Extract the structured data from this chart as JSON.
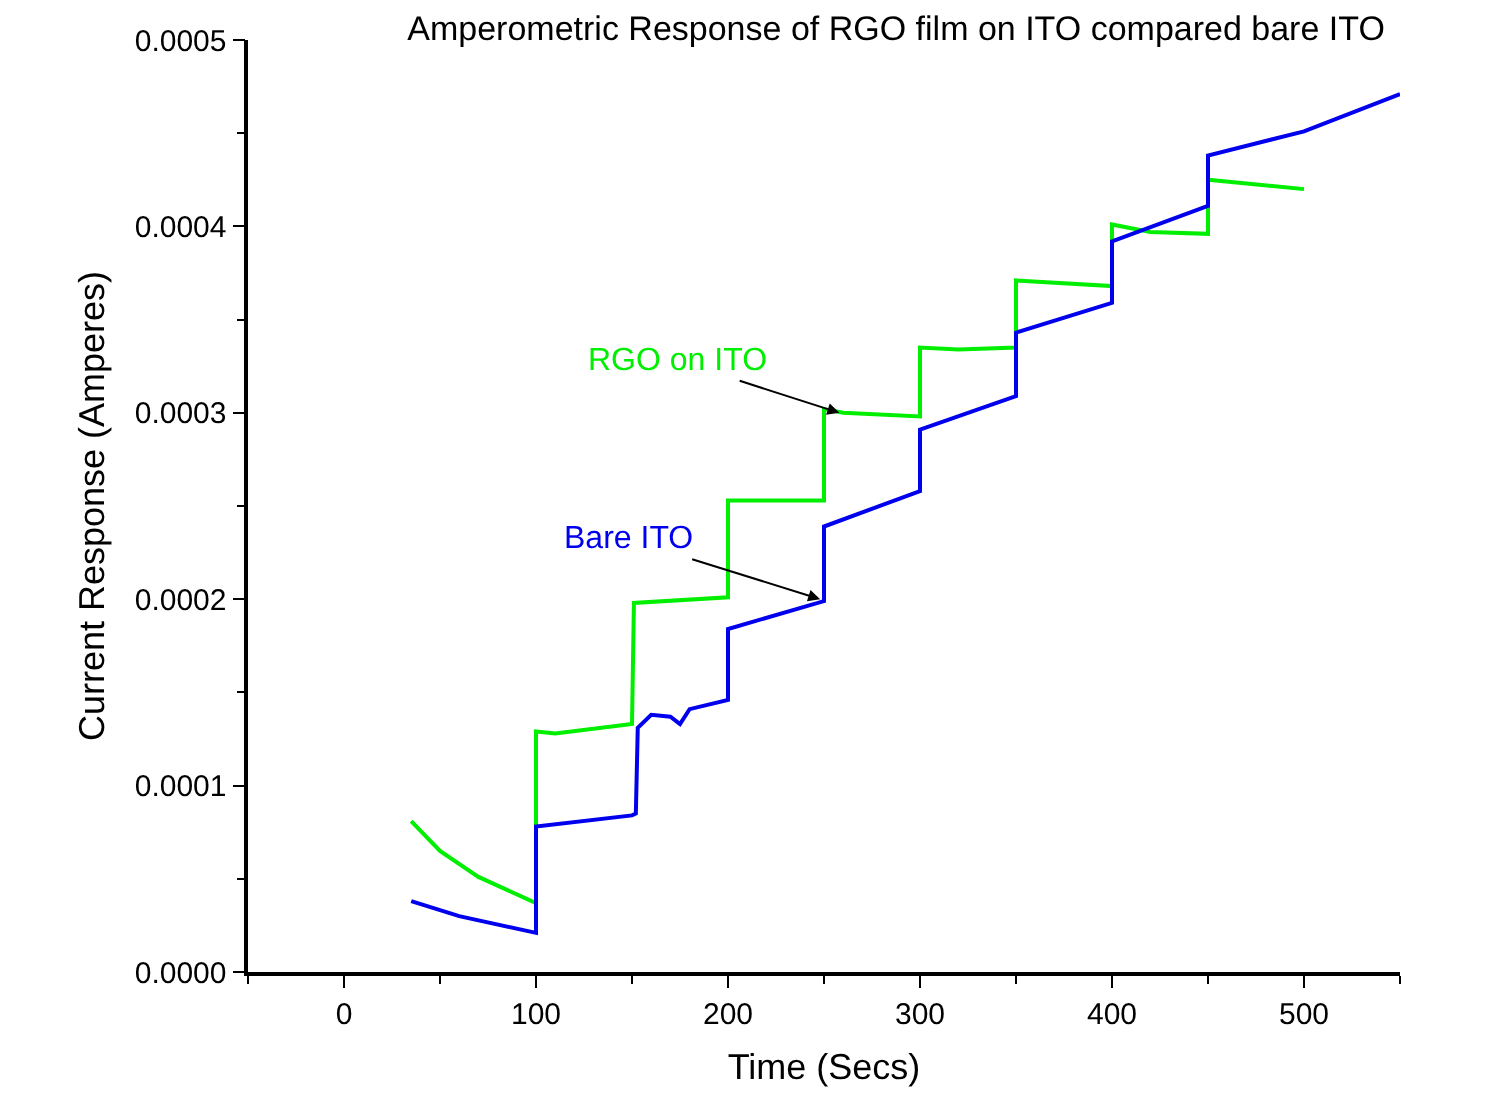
{
  "chart_data": {
    "type": "line",
    "title": "Amperometric Response of RGO film on ITO compared bare ITO",
    "xlabel": "Time (Secs)",
    "ylabel": "Current Response (Amperes)",
    "xlim": [
      -50,
      550
    ],
    "xticks": [
      0,
      100,
      200,
      300,
      400,
      500
    ],
    "ylim": [
      0,
      0.0005
    ],
    "yticks": [
      {
        "value": 0,
        "label": "0.0000"
      },
      {
        "value": 0.0001,
        "label": "0.0001"
      },
      {
        "value": 0.0002,
        "label": "0.0002"
      },
      {
        "value": 0.0003,
        "label": "0.0003"
      },
      {
        "value": 0.0004,
        "label": "0.0004"
      },
      {
        "value": 0.0005,
        "label": "0.0005"
      }
    ],
    "marker": "none",
    "line_style": "solid",
    "series": [
      {
        "color": "#00ee00",
        "x": [
          35,
          50,
          70,
          100,
          100,
          110,
          150,
          151,
          200,
          200,
          250,
          250,
          260,
          300,
          300,
          320,
          350,
          350,
          400,
          400,
          420,
          450,
          450,
          500
        ],
        "values": [
          8.1e-05,
          6.5e-05,
          5.1e-05,
          3.7e-05,
          0.000129,
          0.000128,
          0.000133,
          0.000198,
          0.000201,
          0.000253,
          0.000253,
          0.000302,
          0.0003,
          0.000298,
          0.000335,
          0.000334,
          0.000335,
          0.000371,
          0.000368,
          0.000401,
          0.000397,
          0.000396,
          0.000425,
          0.00042
        ]
      },
      {
        "color": "#0000ee",
        "x": [
          35,
          60,
          100,
          100,
          150,
          152,
          153,
          160,
          170,
          175,
          180,
          200,
          200,
          250,
          250,
          300,
          300,
          350,
          350,
          400,
          400,
          450,
          450,
          500,
          550
        ],
        "values": [
          3.8e-05,
          3e-05,
          2.1e-05,
          7.8e-05,
          8.4e-05,
          8.5e-05,
          0.000131,
          0.000138,
          0.000137,
          0.000133,
          0.000141,
          0.000146,
          0.000184,
          0.000199,
          0.000239,
          0.000258,
          0.000291,
          0.000309,
          0.000343,
          0.000359,
          0.000392,
          0.000411,
          0.000438,
          0.000451,
          0.000471
        ]
      }
    ],
    "annotations": [
      {
        "text": "RGO on ITO",
        "x": 258,
        "y": 0.0003
      },
      {
        "text": "Bare ITO",
        "x": 248,
        "y": 0.0002
      }
    ]
  }
}
